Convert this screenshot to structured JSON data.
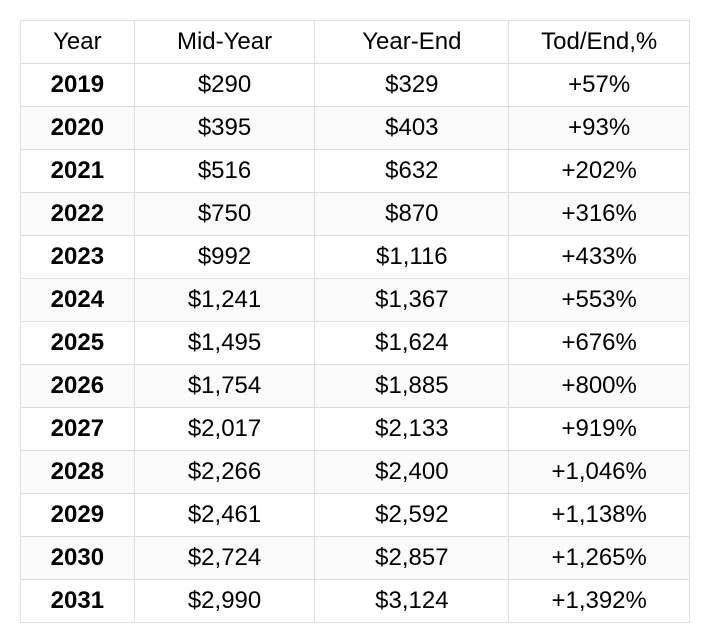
{
  "table": {
    "type": "table",
    "background_color": "#ffffff",
    "border_color": "#dddddd",
    "alt_row_bg": "#fbfbfb",
    "text_color": "#000000",
    "fontsize": 24,
    "columns": [
      {
        "key": "year",
        "label": "Year",
        "width_pct": 17,
        "align": "center",
        "body_font_weight": 700
      },
      {
        "key": "mid",
        "label": "Mid-Year",
        "width_pct": 27,
        "align": "center",
        "body_font_weight": 400
      },
      {
        "key": "end",
        "label": "Year-End",
        "width_pct": 29,
        "align": "center",
        "body_font_weight": 400
      },
      {
        "key": "pct",
        "label": "Tod/End,%",
        "width_pct": 27,
        "align": "center",
        "body_font_weight": 400
      }
    ],
    "rows": [
      {
        "year": "2019",
        "mid": "$290",
        "end": "$329",
        "pct": "+57%"
      },
      {
        "year": "2020",
        "mid": "$395",
        "end": "$403",
        "pct": "+93%"
      },
      {
        "year": "2021",
        "mid": "$516",
        "end": "$632",
        "pct": "+202%"
      },
      {
        "year": "2022",
        "mid": "$750",
        "end": "$870",
        "pct": "+316%"
      },
      {
        "year": "2023",
        "mid": "$992",
        "end": "$1,116",
        "pct": "+433%"
      },
      {
        "year": "2024",
        "mid": "$1,241",
        "end": "$1,367",
        "pct": "+553%"
      },
      {
        "year": "2025",
        "mid": "$1,495",
        "end": "$1,624",
        "pct": "+676%"
      },
      {
        "year": "2026",
        "mid": "$1,754",
        "end": "$1,885",
        "pct": "+800%"
      },
      {
        "year": "2027",
        "mid": "$2,017",
        "end": "$2,133",
        "pct": "+919%"
      },
      {
        "year": "2028",
        "mid": "$2,266",
        "end": "$2,400",
        "pct": "+1,046%"
      },
      {
        "year": "2029",
        "mid": "$2,461",
        "end": "$2,592",
        "pct": "+1,138%"
      },
      {
        "year": "2030",
        "mid": "$2,724",
        "end": "$2,857",
        "pct": "+1,265%"
      },
      {
        "year": "2031",
        "mid": "$2,990",
        "end": "$3,124",
        "pct": "+1,392%"
      }
    ]
  }
}
